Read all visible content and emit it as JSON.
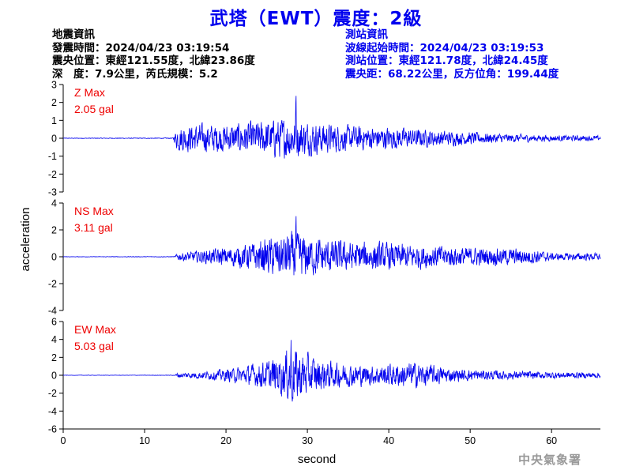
{
  "title": "武塔（EWT）震度：2級",
  "quake_info": {
    "heading": "地震資訊",
    "time": "發震時間：2024/04/23 03:19:54",
    "epicenter": "震央位置：東經121.55度，北緯23.86度",
    "depth_magnitude": "深　度：7.9公里，芮氏規模：5.2"
  },
  "station_info": {
    "heading": "測站資訊",
    "wave_start": "波線起始時間：2024/04/23 03:19:53",
    "station_location": "測站位置：東經121.78度，北緯24.45度",
    "distance_azimuth": "震央距：68.22公里，反方位角：199.44度"
  },
  "agency": "中央氣象署",
  "colors": {
    "trace": "#0000ee",
    "max_label": "#ee0000",
    "title": "#0000ee",
    "station_info": "#0000ee"
  },
  "chart_data": {
    "type": "line",
    "xlabel": "second",
    "ylabel": "acceleration",
    "xlim": [
      0,
      66
    ],
    "xticks": [
      0,
      10,
      20,
      30,
      40,
      50,
      60
    ],
    "grid": false,
    "panels": [
      {
        "component": "Z",
        "max_label": "Z Max",
        "max_value": "2.05 gal",
        "ylim": [
          -3,
          3
        ],
        "yticks": [
          -3,
          -2,
          -1,
          0,
          1,
          2,
          3
        ],
        "onset_s": 13.6,
        "peak_time_s": 28.6,
        "approx_envelope": [
          [
            0,
            0.02
          ],
          [
            13.5,
            0.03
          ],
          [
            14,
            0.9
          ],
          [
            16,
            1.0
          ],
          [
            20,
            1.0
          ],
          [
            24,
            1.2
          ],
          [
            28,
            1.5
          ],
          [
            30,
            1.2
          ],
          [
            35,
            0.9
          ],
          [
            40,
            0.8
          ],
          [
            45,
            0.6
          ],
          [
            50,
            0.45
          ],
          [
            55,
            0.3
          ],
          [
            60,
            0.22
          ],
          [
            66,
            0.18
          ]
        ]
      },
      {
        "component": "NS",
        "max_label": "NS Max",
        "max_value": "3.11 gal",
        "ylim": [
          -4,
          4
        ],
        "yticks": [
          -4,
          -2,
          0,
          2,
          4
        ],
        "onset_s": 13.8,
        "peak_time_s": 28.6,
        "approx_envelope": [
          [
            0,
            0.02
          ],
          [
            13.7,
            0.03
          ],
          [
            14,
            0.35
          ],
          [
            18,
            0.7
          ],
          [
            22,
            1.1
          ],
          [
            26,
            1.9
          ],
          [
            28,
            2.3
          ],
          [
            31,
            1.8
          ],
          [
            35,
            1.4
          ],
          [
            38,
            1.4
          ],
          [
            42,
            1.2
          ],
          [
            45,
            1.1
          ],
          [
            50,
            0.9
          ],
          [
            55,
            0.8
          ],
          [
            58,
            0.7
          ],
          [
            60,
            0.35
          ],
          [
            66,
            0.35
          ]
        ]
      },
      {
        "component": "EW",
        "max_label": "EW Max",
        "max_value": "5.03 gal",
        "ylim": [
          -6,
          6
        ],
        "yticks": [
          -6,
          -4,
          -2,
          0,
          2,
          4,
          6
        ],
        "onset_s": 13.8,
        "peak_time_s": 28.0,
        "approx_envelope": [
          [
            0,
            0.02
          ],
          [
            13.7,
            0.03
          ],
          [
            14,
            0.35
          ],
          [
            18,
            0.6
          ],
          [
            22,
            1.2
          ],
          [
            25,
            2.0
          ],
          [
            27,
            3.0
          ],
          [
            28,
            4.4
          ],
          [
            30,
            3.0
          ],
          [
            33,
            1.8
          ],
          [
            38,
            1.4
          ],
          [
            43,
            1.9
          ],
          [
            48,
            0.9
          ],
          [
            55,
            0.6
          ],
          [
            60,
            0.5
          ],
          [
            66,
            0.4
          ]
        ]
      }
    ]
  }
}
